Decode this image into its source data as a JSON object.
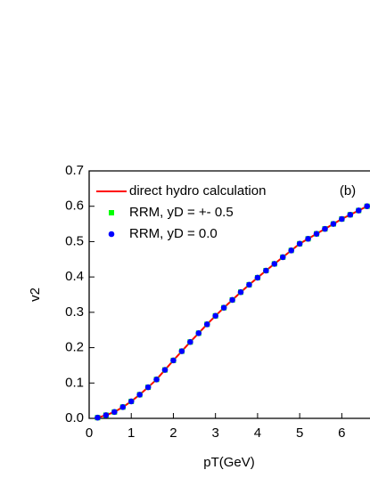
{
  "chart_data": {
    "type": "line",
    "x_label": "pT(GeV)",
    "y_label": "v2",
    "annotation": "(b)",
    "x": [
      0.2,
      0.4,
      0.6,
      0.8,
      1.0,
      1.2,
      1.4,
      1.6,
      1.8,
      2.0,
      2.2,
      2.4,
      2.6,
      2.8,
      3.0,
      3.2,
      3.4,
      3.6,
      3.8,
      4.0,
      4.2,
      4.4,
      4.6,
      4.8,
      5.0,
      5.2,
      5.4,
      5.6,
      5.8,
      6.0,
      6.2,
      6.4,
      6.6
    ],
    "series": [
      {
        "name": "direct hydro calculation",
        "color": "#ff0000",
        "marker": "line",
        "values": [
          0.002,
          0.009,
          0.018,
          0.032,
          0.048,
          0.067,
          0.088,
          0.11,
          0.137,
          0.164,
          0.19,
          0.216,
          0.241,
          0.266,
          0.29,
          0.313,
          0.335,
          0.357,
          0.378,
          0.398,
          0.418,
          0.437,
          0.456,
          0.475,
          0.494,
          0.508,
          0.522,
          0.536,
          0.55,
          0.564,
          0.576,
          0.588,
          0.6
        ]
      },
      {
        "name": "RRM, yD = +- 0.5",
        "color": "#00ff00",
        "marker": "square",
        "values": [
          0.002,
          0.009,
          0.018,
          0.032,
          0.048,
          0.067,
          0.088,
          0.11,
          0.137,
          0.164,
          0.19,
          0.216,
          0.241,
          0.266,
          0.29,
          0.313,
          0.335,
          0.357,
          0.378,
          0.398,
          0.418,
          0.437,
          0.456,
          0.475,
          0.494,
          0.508,
          0.522,
          0.536,
          0.55,
          0.564,
          0.576,
          0.588,
          0.6
        ]
      },
      {
        "name": "RRM, yD = 0.0",
        "color": "#0000ff",
        "marker": "circle",
        "values": [
          0.002,
          0.009,
          0.018,
          0.032,
          0.048,
          0.067,
          0.088,
          0.11,
          0.137,
          0.164,
          0.19,
          0.216,
          0.241,
          0.266,
          0.29,
          0.313,
          0.335,
          0.357,
          0.378,
          0.398,
          0.418,
          0.437,
          0.456,
          0.475,
          0.494,
          0.508,
          0.522,
          0.536,
          0.55,
          0.564,
          0.576,
          0.588,
          0.6
        ]
      }
    ],
    "xlim": [
      0,
      6.67
    ],
    "xticks": [
      0,
      1,
      2,
      3,
      4,
      5,
      6
    ],
    "ylim": [
      0,
      0.7
    ],
    "yticks": [
      {
        "value": 0,
        "label": "0.0"
      },
      0.1,
      0.2,
      0.3,
      0.4,
      0.5,
      0.6,
      0.7
    ]
  }
}
